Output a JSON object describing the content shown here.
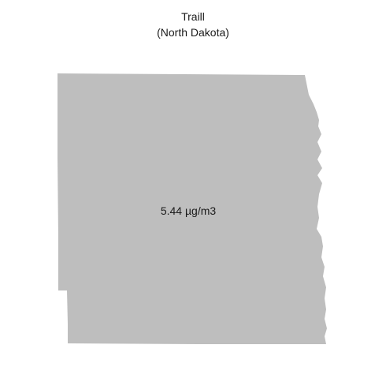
{
  "map": {
    "title": "Traill",
    "subtitle": "(North Dakota)",
    "region_value_label": "5.44 µg/m3",
    "fill_color": "#bebebe",
    "background_color": "#ffffff"
  }
}
